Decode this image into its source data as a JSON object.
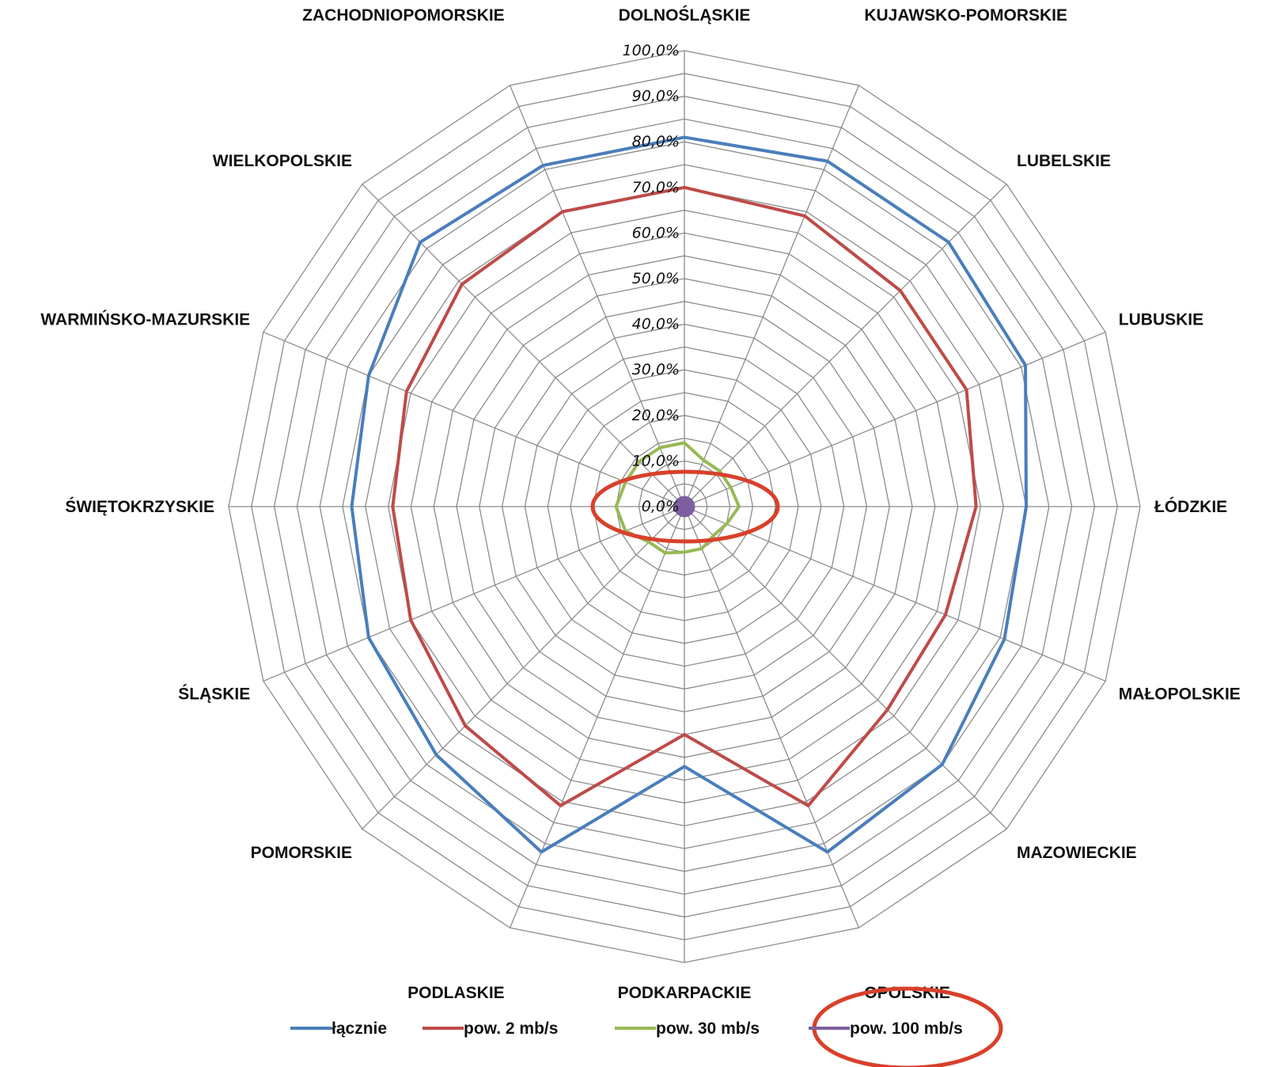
{
  "chart_data": {
    "type": "radar",
    "categories": [
      "DOLNOŚLĄSKIE",
      "KUJAWSKO-POMORSKIE",
      "LUBELSKIE",
      "LUBUSKIE",
      "ŁÓDZKIE",
      "MAŁOPOLSKIE",
      "MAZOWIECKIE",
      "OPOLSKIE",
      "PODKARPACKIE",
      "PODLASKIE",
      "POMORSKIE",
      "ŚLĄSKIE",
      "ŚWIĘTOKRZYSKIE",
      "WARMIŃSKO-MAZURSKIE",
      "WIELKOPOLSKIE",
      "ZACHODNIOPOMORSKIE"
    ],
    "ticks": [
      "0,0%",
      "10,0%",
      "20,0%",
      "30,0%",
      "40,0%",
      "50,0%",
      "60,0%",
      "70,0%",
      "80,0%",
      "90,0%",
      "100,0%"
    ],
    "rlim": [
      0,
      100
    ],
    "grid": true,
    "legend_position": "bottom",
    "series": [
      {
        "name": "łącznie",
        "color": "#4a7ebb",
        "values": [
          81,
          82,
          82,
          81,
          75,
          76,
          80,
          82,
          57,
          82,
          77,
          75,
          73,
          75,
          82,
          81
        ]
      },
      {
        "name": "pow. 2 mb/s",
        "color": "#be4b48",
        "values": [
          70,
          69,
          67,
          67,
          64,
          62,
          63,
          71,
          50,
          71,
          68,
          65,
          64,
          66,
          69,
          70
        ]
      },
      {
        "name": "pow. 30 mb/s",
        "color": "#98b954",
        "values": [
          14,
          11,
          11,
          11,
          12,
          10,
          9,
          10,
          10,
          11,
          11,
          14,
          15,
          14,
          14,
          14
        ]
      },
      {
        "name": "pow. 100 mb/s",
        "color": "#7d5fa0",
        "values": [
          2,
          2,
          2,
          2,
          2,
          2,
          2,
          2,
          2,
          2,
          2,
          2,
          2,
          2,
          2,
          2
        ]
      }
    ]
  }
}
